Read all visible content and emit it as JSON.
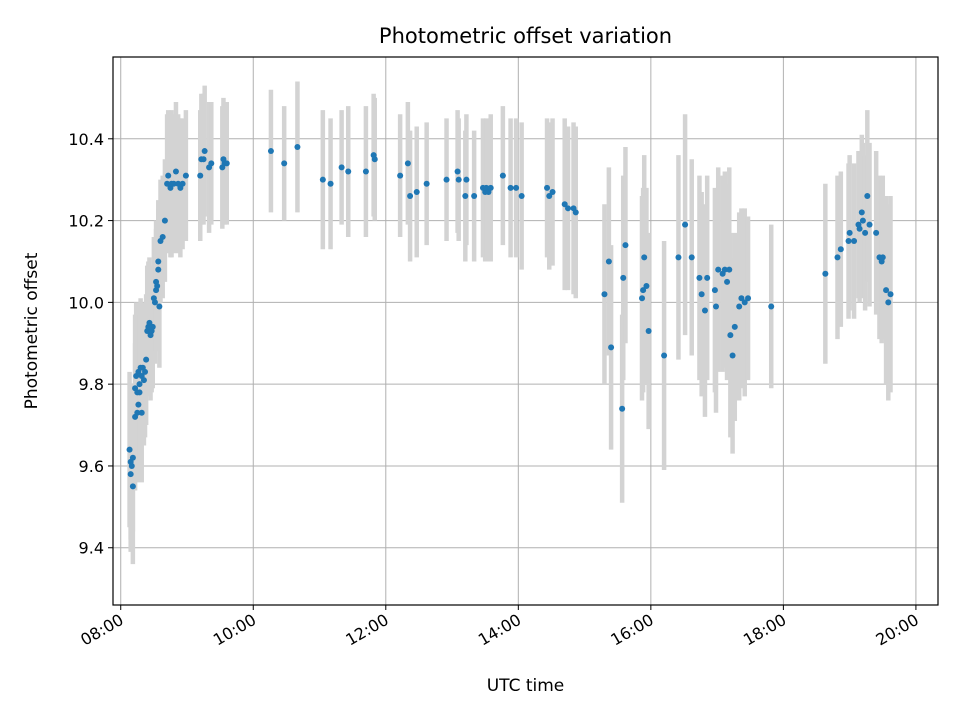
{
  "chart_data": {
    "type": "scatter",
    "title": "Photometric offset variation",
    "xlabel": "UTC time",
    "ylabel": "Photometric offset",
    "xlim": [
      "07:53",
      "20:20"
    ],
    "ylim": [
      9.26,
      10.6
    ],
    "x_ticks": [
      "08:00",
      "10:00",
      "12:00",
      "14:00",
      "16:00",
      "18:00",
      "20:00"
    ],
    "y_ticks": [
      "9.4",
      "9.6",
      "9.8",
      "10.0",
      "10.2",
      "10.4"
    ],
    "grid": true,
    "colors": {
      "points": "#1f77b4",
      "errorbars": "#d3d3d3",
      "grid": "#b0b0b0"
    },
    "series": [
      {
        "points": [
          {
            "t": "08:08",
            "y": 9.64,
            "err": 0.19
          },
          {
            "t": "08:09",
            "y": 9.61,
            "err": 0.19
          },
          {
            "t": "08:09",
            "y": 9.58,
            "err": 0.19
          },
          {
            "t": "08:10",
            "y": 9.6,
            "err": 0.18
          },
          {
            "t": "08:11",
            "y": 9.62,
            "err": 0.18
          },
          {
            "t": "08:11",
            "y": 9.55,
            "err": 0.19
          },
          {
            "t": "08:13",
            "y": 9.72,
            "err": 0.18
          },
          {
            "t": "08:13",
            "y": 9.79,
            "err": 0.18
          },
          {
            "t": "08:14",
            "y": 9.82,
            "err": 0.18
          },
          {
            "t": "08:15",
            "y": 9.78,
            "err": 0.18
          },
          {
            "t": "08:15",
            "y": 9.73,
            "err": 0.17
          },
          {
            "t": "08:16",
            "y": 9.83,
            "err": 0.17
          },
          {
            "t": "08:16",
            "y": 9.75,
            "err": 0.17
          },
          {
            "t": "08:17",
            "y": 9.8,
            "err": 0.17
          },
          {
            "t": "08:17",
            "y": 9.78,
            "err": 0.17
          },
          {
            "t": "08:18",
            "y": 9.84,
            "err": 0.17
          },
          {
            "t": "08:19",
            "y": 9.73,
            "err": 0.17
          },
          {
            "t": "08:19",
            "y": 9.82,
            "err": 0.16
          },
          {
            "t": "08:20",
            "y": 9.84,
            "err": 0.16
          },
          {
            "t": "08:21",
            "y": 9.81,
            "err": 0.16
          },
          {
            "t": "08:22",
            "y": 9.83,
            "err": 0.16
          },
          {
            "t": "08:23",
            "y": 9.86,
            "err": 0.16
          },
          {
            "t": "08:24",
            "y": 9.93,
            "err": 0.16
          },
          {
            "t": "08:25",
            "y": 9.94,
            "err": 0.16
          },
          {
            "t": "08:26",
            "y": 9.95,
            "err": 0.16
          },
          {
            "t": "08:27",
            "y": 9.92,
            "err": 0.16
          },
          {
            "t": "08:28",
            "y": 9.93,
            "err": 0.15
          },
          {
            "t": "08:29",
            "y": 9.94,
            "err": 0.15
          },
          {
            "t": "08:30",
            "y": 10.01,
            "err": 0.15
          },
          {
            "t": "08:31",
            "y": 10.0,
            "err": 0.15
          },
          {
            "t": "08:32",
            "y": 10.05,
            "err": 0.15
          },
          {
            "t": "08:32",
            "y": 10.03,
            "err": 0.15
          },
          {
            "t": "08:33",
            "y": 10.04,
            "err": 0.15
          },
          {
            "t": "08:34",
            "y": 10.08,
            "err": 0.15
          },
          {
            "t": "08:34",
            "y": 10.1,
            "err": 0.15
          },
          {
            "t": "08:35",
            "y": 9.99,
            "err": 0.15
          },
          {
            "t": "08:36",
            "y": 10.15,
            "err": 0.15
          },
          {
            "t": "08:38",
            "y": 10.16,
            "err": 0.15
          },
          {
            "t": "08:40",
            "y": 10.2,
            "err": 0.15
          },
          {
            "t": "08:42",
            "y": 10.29,
            "err": 0.17
          },
          {
            "t": "08:43",
            "y": 10.31,
            "err": 0.16
          },
          {
            "t": "08:45",
            "y": 10.28,
            "err": 0.17
          },
          {
            "t": "08:46",
            "y": 10.29,
            "err": 0.18
          },
          {
            "t": "08:48",
            "y": 10.29,
            "err": 0.17
          },
          {
            "t": "08:50",
            "y": 10.32,
            "err": 0.17
          },
          {
            "t": "08:52",
            "y": 10.29,
            "err": 0.17
          },
          {
            "t": "08:54",
            "y": 10.28,
            "err": 0.17
          },
          {
            "t": "08:56",
            "y": 10.29,
            "err": 0.16
          },
          {
            "t": "08:59",
            "y": 10.31,
            "err": 0.16
          },
          {
            "t": "09:12",
            "y": 10.31,
            "err": 0.16
          },
          {
            "t": "09:13",
            "y": 10.35,
            "err": 0.16
          },
          {
            "t": "09:15",
            "y": 10.35,
            "err": 0.16
          },
          {
            "t": "09:16",
            "y": 10.37,
            "err": 0.16
          },
          {
            "t": "09:20",
            "y": 10.33,
            "err": 0.16
          },
          {
            "t": "09:22",
            "y": 10.34,
            "err": 0.15
          },
          {
            "t": "09:32",
            "y": 10.33,
            "err": 0.15
          },
          {
            "t": "09:33",
            "y": 10.35,
            "err": 0.15
          },
          {
            "t": "09:34",
            "y": 10.34,
            "err": 0.15
          },
          {
            "t": "09:36",
            "y": 10.34,
            "err": 0.15
          },
          {
            "t": "10:16",
            "y": 10.37,
            "err": 0.15
          },
          {
            "t": "10:28",
            "y": 10.34,
            "err": 0.14
          },
          {
            "t": "10:40",
            "y": 10.38,
            "err": 0.16
          },
          {
            "t": "11:03",
            "y": 10.3,
            "err": 0.17
          },
          {
            "t": "11:10",
            "y": 10.29,
            "err": 0.16
          },
          {
            "t": "11:20",
            "y": 10.33,
            "err": 0.14
          },
          {
            "t": "11:26",
            "y": 10.32,
            "err": 0.16
          },
          {
            "t": "11:42",
            "y": 10.32,
            "err": 0.16
          },
          {
            "t": "11:49",
            "y": 10.36,
            "err": 0.15
          },
          {
            "t": "11:50",
            "y": 10.35,
            "err": 0.15
          },
          {
            "t": "12:13",
            "y": 10.31,
            "err": 0.15
          },
          {
            "t": "12:20",
            "y": 10.34,
            "err": 0.15
          },
          {
            "t": "12:22",
            "y": 10.26,
            "err": 0.16
          },
          {
            "t": "12:28",
            "y": 10.27,
            "err": 0.16
          },
          {
            "t": "12:37",
            "y": 10.29,
            "err": 0.15
          },
          {
            "t": "12:55",
            "y": 10.3,
            "err": 0.15
          },
          {
            "t": "13:05",
            "y": 10.32,
            "err": 0.15
          },
          {
            "t": "13:06",
            "y": 10.3,
            "err": 0.15
          },
          {
            "t": "13:12",
            "y": 10.26,
            "err": 0.16
          },
          {
            "t": "13:13",
            "y": 10.3,
            "err": 0.16
          },
          {
            "t": "13:20",
            "y": 10.26,
            "err": 0.16
          },
          {
            "t": "13:28",
            "y": 10.28,
            "err": 0.17
          },
          {
            "t": "13:30",
            "y": 10.27,
            "err": 0.17
          },
          {
            "t": "13:31",
            "y": 10.28,
            "err": 0.17
          },
          {
            "t": "13:33",
            "y": 10.27,
            "err": 0.17
          },
          {
            "t": "13:35",
            "y": 10.28,
            "err": 0.18
          },
          {
            "t": "13:46",
            "y": 10.31,
            "err": 0.17
          },
          {
            "t": "13:53",
            "y": 10.28,
            "err": 0.17
          },
          {
            "t": "13:58",
            "y": 10.28,
            "err": 0.17
          },
          {
            "t": "14:03",
            "y": 10.26,
            "err": 0.18
          },
          {
            "t": "14:26",
            "y": 10.28,
            "err": 0.17
          },
          {
            "t": "14:28",
            "y": 10.26,
            "err": 0.18
          },
          {
            "t": "14:31",
            "y": 10.27,
            "err": 0.18
          },
          {
            "t": "14:42",
            "y": 10.24,
            "err": 0.21
          },
          {
            "t": "14:45",
            "y": 10.23,
            "err": 0.2
          },
          {
            "t": "14:50",
            "y": 10.23,
            "err": 0.21
          },
          {
            "t": "14:52",
            "y": 10.22,
            "err": 0.21
          },
          {
            "t": "15:18",
            "y": 10.02,
            "err": 0.22
          },
          {
            "t": "15:22",
            "y": 10.1,
            "err": 0.23
          },
          {
            "t": "15:24",
            "y": 9.89,
            "err": 0.25
          },
          {
            "t": "15:34",
            "y": 9.74,
            "err": 0.23
          },
          {
            "t": "15:35",
            "y": 10.06,
            "err": 0.25
          },
          {
            "t": "15:37",
            "y": 10.14,
            "err": 0.24
          },
          {
            "t": "15:52",
            "y": 10.01,
            "err": 0.25
          },
          {
            "t": "15:53",
            "y": 10.03,
            "err": 0.25
          },
          {
            "t": "15:54",
            "y": 10.11,
            "err": 0.25
          },
          {
            "t": "15:56",
            "y": 10.04,
            "err": 0.24
          },
          {
            "t": "15:58",
            "y": 9.93,
            "err": 0.24
          },
          {
            "t": "16:12",
            "y": 9.87,
            "err": 0.28
          },
          {
            "t": "16:25",
            "y": 10.11,
            "err": 0.25
          },
          {
            "t": "16:31",
            "y": 10.19,
            "err": 0.27
          },
          {
            "t": "16:37",
            "y": 10.11,
            "err": 0.24
          },
          {
            "t": "16:44",
            "y": 10.06,
            "err": 0.25
          },
          {
            "t": "16:46",
            "y": 10.02,
            "err": 0.25
          },
          {
            "t": "16:49",
            "y": 9.98,
            "err": 0.26
          },
          {
            "t": "16:51",
            "y": 10.06,
            "err": 0.25
          },
          {
            "t": "16:58",
            "y": 10.03,
            "err": 0.25
          },
          {
            "t": "16:59",
            "y": 9.99,
            "err": 0.26
          },
          {
            "t": "17:01",
            "y": 10.08,
            "err": 0.25
          },
          {
            "t": "17:05",
            "y": 10.07,
            "err": 0.24
          },
          {
            "t": "17:07",
            "y": 10.08,
            "err": 0.24
          },
          {
            "t": "17:09",
            "y": 10.05,
            "err": 0.24
          },
          {
            "t": "17:11",
            "y": 10.08,
            "err": 0.25
          },
          {
            "t": "17:12",
            "y": 9.92,
            "err": 0.25
          },
          {
            "t": "17:14",
            "y": 9.87,
            "err": 0.24
          },
          {
            "t": "17:16",
            "y": 9.94,
            "err": 0.23
          },
          {
            "t": "17:20",
            "y": 9.99,
            "err": 0.23
          },
          {
            "t": "17:22",
            "y": 10.01,
            "err": 0.22
          },
          {
            "t": "17:25",
            "y": 10.0,
            "err": 0.23
          },
          {
            "t": "17:28",
            "y": 10.01,
            "err": 0.2
          },
          {
            "t": "17:49",
            "y": 9.99,
            "err": 0.2
          },
          {
            "t": "18:38",
            "y": 10.07,
            "err": 0.22
          },
          {
            "t": "18:49",
            "y": 10.11,
            "err": 0.2
          },
          {
            "t": "18:52",
            "y": 10.13,
            "err": 0.19
          },
          {
            "t": "18:59",
            "y": 10.15,
            "err": 0.19
          },
          {
            "t": "19:00",
            "y": 10.17,
            "err": 0.19
          },
          {
            "t": "19:04",
            "y": 10.15,
            "err": 0.19
          },
          {
            "t": "19:08",
            "y": 10.19,
            "err": 0.18
          },
          {
            "t": "19:09",
            "y": 10.18,
            "err": 0.18
          },
          {
            "t": "19:11",
            "y": 10.22,
            "err": 0.19
          },
          {
            "t": "19:12",
            "y": 10.2,
            "err": 0.19
          },
          {
            "t": "19:14",
            "y": 10.17,
            "err": 0.19
          },
          {
            "t": "19:16",
            "y": 10.26,
            "err": 0.21
          },
          {
            "t": "19:18",
            "y": 10.19,
            "err": 0.2
          },
          {
            "t": "19:24",
            "y": 10.17,
            "err": 0.2
          },
          {
            "t": "19:27",
            "y": 10.11,
            "err": 0.2
          },
          {
            "t": "19:29",
            "y": 10.1,
            "err": 0.2
          },
          {
            "t": "19:30",
            "y": 10.11,
            "err": 0.2
          },
          {
            "t": "19:33",
            "y": 10.03,
            "err": 0.23
          },
          {
            "t": "19:35",
            "y": 10.0,
            "err": 0.24
          },
          {
            "t": "19:37",
            "y": 10.02,
            "err": 0.24
          }
        ]
      }
    ]
  }
}
